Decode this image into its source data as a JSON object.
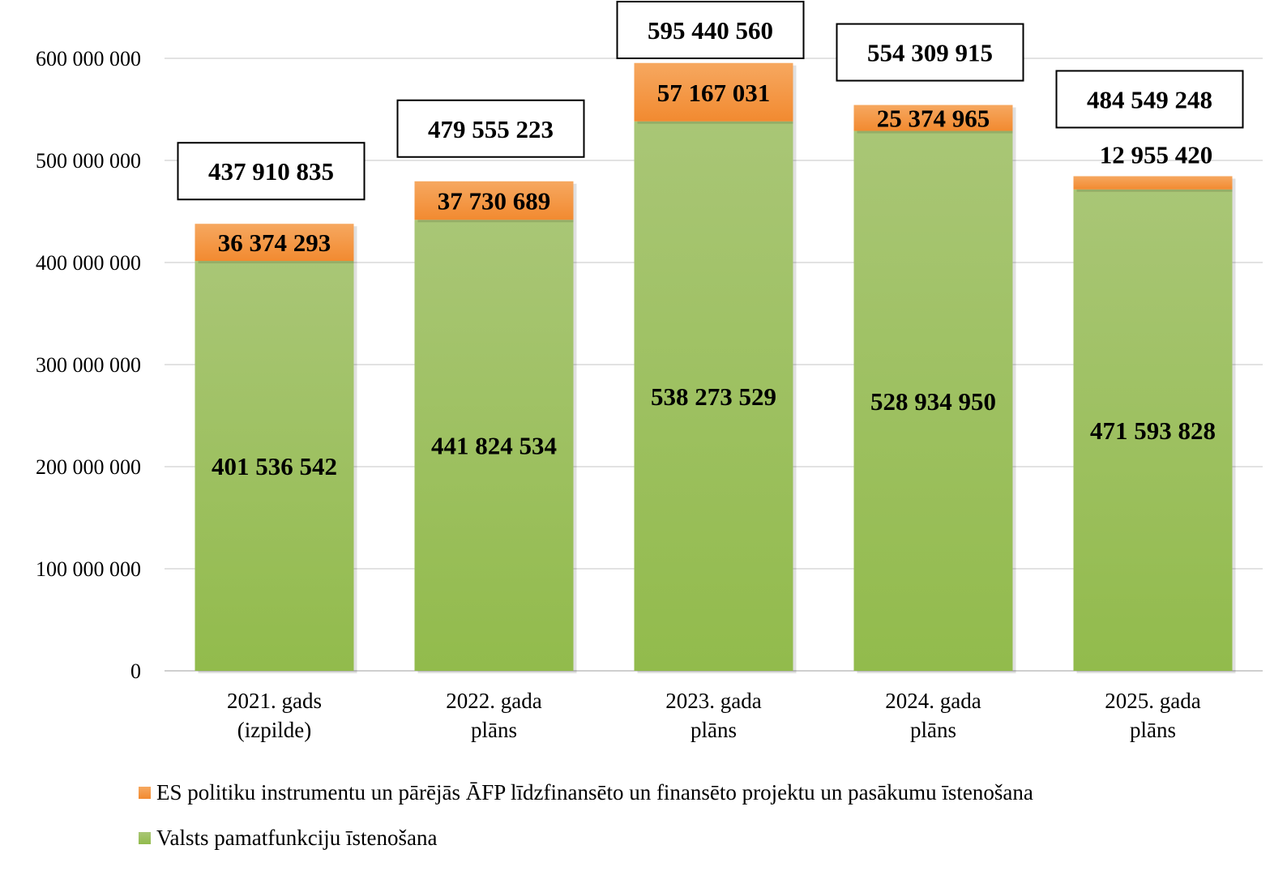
{
  "chart_data": {
    "type": "bar",
    "stacked": true,
    "categories": [
      [
        "2021. gads",
        "(izpilde)"
      ],
      [
        "2022. gada",
        "plāns"
      ],
      [
        "2023. gada",
        "plāns"
      ],
      [
        "2024. gada",
        "plāns"
      ],
      [
        "2025. gada",
        "plāns"
      ]
    ],
    "series": [
      {
        "name": "Valsts pamatfunkciju īstenošana",
        "color": "#92bb4c",
        "color_light": "#a9c676",
        "values": [
          401536542,
          441824534,
          538273529,
          528934950,
          471593828
        ],
        "labels": [
          "401 536 542",
          "441 824 534",
          "538 273 529",
          "528 934 950",
          "471 593 828"
        ]
      },
      {
        "name": "ES politiku instrumentu un pārējās ĀFP līdzfinansēto un finansēto projektu un pasākumu īstenošana",
        "color": "#f28a30",
        "color_light": "#f6a860",
        "values": [
          36374293,
          37730689,
          57167031,
          25374965,
          12955420
        ],
        "labels": [
          "36 374 293",
          "37 730 689",
          "57 167 031",
          "25 374 965",
          "12 955 420"
        ]
      }
    ],
    "totals": [
      437910835,
      479555223,
      595440560,
      554309915,
      484549248
    ],
    "total_labels": [
      "437 910 835",
      "479 555 223",
      "595 440 560",
      "554 309 915",
      "484 549 248"
    ],
    "ylim": [
      0,
      600000000
    ],
    "yticks": [
      0,
      100000000,
      200000000,
      300000000,
      400000000,
      500000000,
      600000000
    ],
    "ytick_labels": [
      "0",
      "100 000 000",
      "200 000 000",
      "300 000 000",
      "400 000 000",
      "500 000 000",
      "600 000 000"
    ],
    "grid": true,
    "legend_position": "bottom-left",
    "title": "",
    "xlabel": "",
    "ylabel": ""
  }
}
